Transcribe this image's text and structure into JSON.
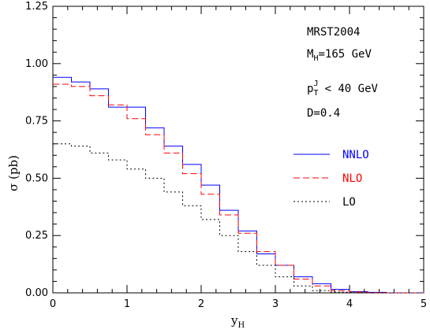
{
  "chart_data": {
    "type": "line",
    "step": true,
    "xlabel": "y",
    "xlabel_sub": "H",
    "ylabel": "σ (pb)",
    "xlim": [
      0,
      5
    ],
    "ylim": [
      0,
      1.25
    ],
    "xticks": [
      0,
      1,
      2,
      3,
      4,
      5
    ],
    "yticks": [
      0.0,
      0.25,
      0.5,
      0.75,
      1.0,
      1.25
    ],
    "ytick_labels": [
      "0.00",
      "0.25",
      "0.50",
      "0.75",
      "1.00",
      "1.25"
    ],
    "xtick_labels": [
      "0",
      "1",
      "2",
      "3",
      "4",
      "5"
    ],
    "grid": false,
    "legend_position": "right",
    "annotations": {
      "pdf": "MRST2004",
      "mass_main": "M",
      "mass_sub": "H",
      "mass_value": "=165 GeV",
      "cut_p": "p",
      "cut_sup": "J",
      "cut_sub": "T",
      "cut_value": "< 40 GeV",
      "radius": "D=0.4"
    },
    "bin_edges": [
      0,
      0.25,
      0.5,
      0.75,
      1.0,
      1.25,
      1.5,
      1.75,
      2.0,
      2.25,
      2.5,
      2.75,
      3.0,
      3.25,
      3.5,
      3.75,
      4.0,
      4.25,
      4.5,
      4.75,
      5.0
    ],
    "series": [
      {
        "name": "NNLO",
        "color": "#0000ff",
        "dash": "solid",
        "values": [
          0.94,
          0.92,
          0.89,
          0.81,
          0.81,
          0.72,
          0.64,
          0.56,
          0.47,
          0.36,
          0.27,
          0.17,
          0.12,
          0.07,
          0.04,
          0.015,
          0.005,
          0.002,
          0.0,
          0.0
        ]
      },
      {
        "name": "NLO",
        "color": "#ff0000",
        "dash": "dashed",
        "values": [
          0.91,
          0.9,
          0.86,
          0.82,
          0.76,
          0.69,
          0.61,
          0.52,
          0.43,
          0.34,
          0.26,
          0.18,
          0.12,
          0.06,
          0.03,
          0.01,
          0.004,
          0.001,
          0.0,
          0.0
        ]
      },
      {
        "name": "LO",
        "color": "#000000",
        "dash": "dotted",
        "values": [
          0.65,
          0.64,
          0.61,
          0.58,
          0.54,
          0.5,
          0.44,
          0.38,
          0.32,
          0.25,
          0.18,
          0.12,
          0.07,
          0.03,
          0.01,
          0.003,
          0.001,
          0.0,
          0.0,
          0.0
        ]
      }
    ]
  }
}
